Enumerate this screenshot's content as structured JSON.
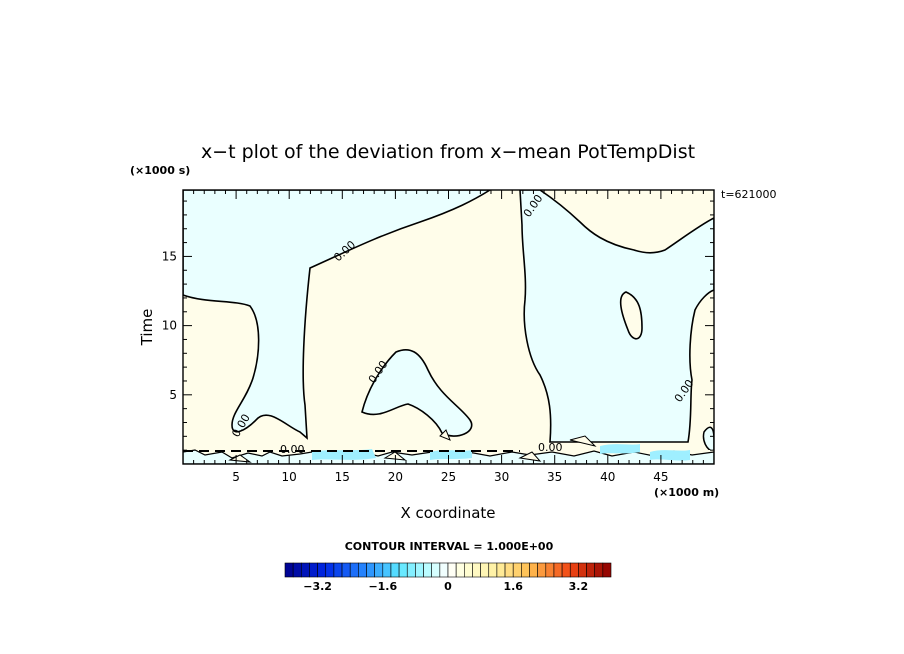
{
  "chart_data": {
    "type": "contour",
    "title": "x−t plot of the deviation from x−mean PotTempDist",
    "xlabel": "X coordinate",
    "ylabel": "Time",
    "x_unit": "(×1000 m)",
    "y_unit": "(×1000 s)",
    "x_ticks": [
      5,
      10,
      15,
      20,
      25,
      30,
      35,
      40,
      45
    ],
    "y_ticks": [
      5,
      10,
      15
    ],
    "xlim": [
      0,
      50
    ],
    "ylim": [
      0,
      19.8
    ],
    "time_stamp": "t=621000",
    "contour_label": "0.00",
    "contour_interval_text": "CONTOUR INTERVAL = 1.000E+00",
    "contour_interval": 1.0,
    "colorbar": {
      "ticks": [
        "−3.2",
        "−1.6",
        "0",
        "1.6",
        "3.2"
      ],
      "range": [
        -4,
        4
      ]
    },
    "regions": [
      {
        "name": "negative",
        "approx_value": -0.3,
        "color": "#eaffff"
      },
      {
        "name": "positive",
        "approx_value": 0.3,
        "color": "#fffdea"
      }
    ],
    "colors": {
      "negative_fill": "#eaffff",
      "positive_fill": "#fffdea",
      "strong_negative": "#9fefff",
      "contour_line": "#000000"
    }
  }
}
